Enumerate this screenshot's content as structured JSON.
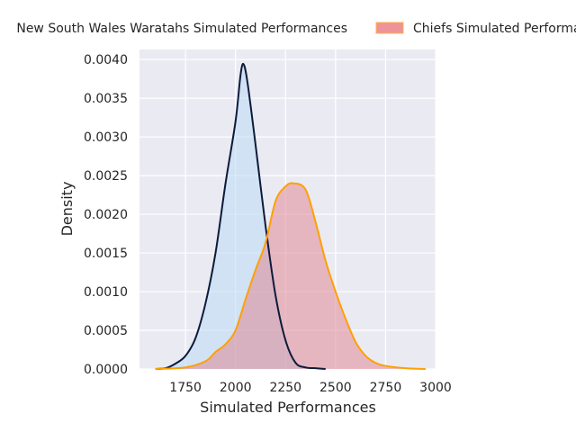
{
  "chart_data": {
    "type": "area",
    "title": "",
    "xlabel": "Simulated Performances",
    "ylabel": "Density",
    "xlim": [
      1520,
      3000
    ],
    "ylim": [
      0,
      0.00413
    ],
    "grid": true,
    "legend_position": "top-center",
    "xticks": [
      1750,
      2000,
      2250,
      2500,
      2750,
      3000
    ],
    "xtick_labels": [
      "1750",
      "2000",
      "2250",
      "2500",
      "2750",
      "3000"
    ],
    "yticks": [
      0,
      0.0005,
      0.001,
      0.0015,
      0.002,
      0.0025,
      0.003,
      0.0035,
      0.004
    ],
    "ytick_labels": [
      "0.0000",
      "0.0005",
      "0.0010",
      "0.0015",
      "0.0020",
      "0.0025",
      "0.0030",
      "0.0035",
      "0.0040"
    ],
    "series": [
      {
        "name": "New South Wales Waratahs Simulated Performances",
        "line_color": "#0d1b3a",
        "fill_color": "#b6daf4",
        "x": [
          1600,
          1650,
          1700,
          1750,
          1800,
          1850,
          1900,
          1950,
          2000,
          2025,
          2040,
          2060,
          2100,
          2150,
          2200,
          2250,
          2300,
          2350,
          2400,
          2450
        ],
        "y": [
          0,
          1e-05,
          7e-05,
          0.00017,
          0.0004,
          0.00085,
          0.0015,
          0.0024,
          0.0032,
          0.0038,
          0.00394,
          0.0037,
          0.0029,
          0.00185,
          0.00095,
          0.00037,
          8e-05,
          2e-05,
          1e-05,
          0
        ]
      },
      {
        "name": "Chiefs Simulated Performances",
        "line_color": "#ffa000",
        "fill_color": "#e0808e",
        "x": [
          1600,
          1750,
          1850,
          1900,
          1950,
          2000,
          2050,
          2100,
          2150,
          2200,
          2250,
          2290,
          2350,
          2400,
          2450,
          2500,
          2550,
          2600,
          2650,
          2700,
          2750,
          2850,
          2950
        ],
        "y": [
          0,
          2e-05,
          0.0001,
          0.00022,
          0.00032,
          0.0005,
          0.0009,
          0.00128,
          0.00163,
          0.00217,
          0.00236,
          0.0024,
          0.00232,
          0.0019,
          0.0014,
          0.001,
          0.00065,
          0.00035,
          0.00017,
          8e-05,
          4e-05,
          1e-05,
          0
        ]
      }
    ]
  }
}
